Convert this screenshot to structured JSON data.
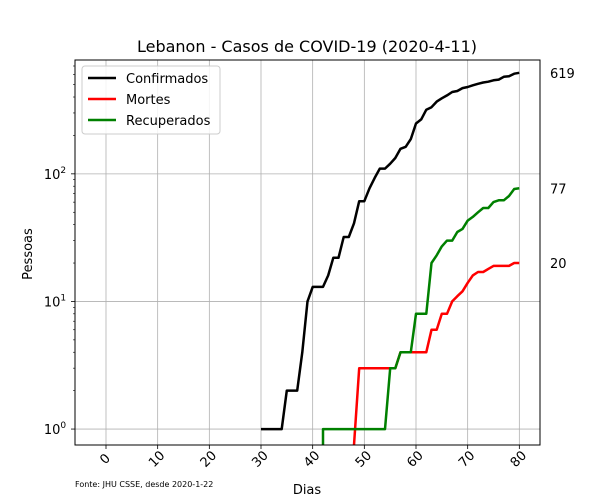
{
  "chart_data": {
    "type": "line",
    "title": "Lebanon - Casos de COVID-19 (2020-4-11)",
    "xlabel": "Dias",
    "ylabel": "Pessoas",
    "source_note": "Fonte: JHU CSSE, desde 2020-1-22",
    "xlim": [
      -6,
      84
    ],
    "ylim": [
      0.75,
      780
    ],
    "yscale": "log",
    "grid": true,
    "legend_position": "top-left",
    "x_ticks": [
      0,
      10,
      20,
      30,
      40,
      50,
      60,
      70,
      80
    ],
    "x_tick_labels": [
      "0",
      "10",
      "20",
      "30",
      "40",
      "50",
      "60",
      "70",
      "80"
    ],
    "y_ticks": [
      1,
      10,
      100
    ],
    "y_tick_labels": [
      {
        "base": "10",
        "exp": "0"
      },
      {
        "base": "10",
        "exp": "1"
      },
      {
        "base": "10",
        "exp": "2"
      }
    ],
    "series": [
      {
        "name": "Confirmados",
        "color": "#000000",
        "end_label": "619",
        "points": [
          [
            30,
            1
          ],
          [
            34,
            1
          ],
          [
            35,
            2
          ],
          [
            37,
            2
          ],
          [
            38,
            4
          ],
          [
            39,
            10
          ],
          [
            40,
            13
          ],
          [
            42,
            13
          ],
          [
            43,
            16
          ],
          [
            44,
            22
          ],
          [
            45,
            22
          ],
          [
            46,
            32
          ],
          [
            47,
            32
          ],
          [
            48,
            41
          ],
          [
            49,
            61
          ],
          [
            50,
            61
          ],
          [
            51,
            77
          ],
          [
            52,
            93
          ],
          [
            53,
            110
          ],
          [
            54,
            110
          ],
          [
            55,
            120
          ],
          [
            56,
            133
          ],
          [
            57,
            157
          ],
          [
            58,
            163
          ],
          [
            59,
            187
          ],
          [
            60,
            248
          ],
          [
            61,
            267
          ],
          [
            62,
            318
          ],
          [
            63,
            333
          ],
          [
            64,
            368
          ],
          [
            65,
            391
          ],
          [
            66,
            412
          ],
          [
            67,
            438
          ],
          [
            68,
            446
          ],
          [
            69,
            470
          ],
          [
            70,
            479
          ],
          [
            71,
            494
          ],
          [
            72,
            508
          ],
          [
            73,
            520
          ],
          [
            74,
            527
          ],
          [
            75,
            541
          ],
          [
            76,
            548
          ],
          [
            77,
            576
          ],
          [
            78,
            582
          ],
          [
            79,
            609
          ],
          [
            80,
            619
          ]
        ]
      },
      {
        "name": "Mortes",
        "color": "#ff0000",
        "end_label": "20",
        "points": [
          [
            48,
            0.75
          ],
          [
            49,
            3
          ],
          [
            55,
            3
          ],
          [
            56,
            3
          ],
          [
            57,
            4
          ],
          [
            62,
            4
          ],
          [
            63,
            6
          ],
          [
            64,
            6
          ],
          [
            65,
            8
          ],
          [
            66,
            8
          ],
          [
            67,
            10
          ],
          [
            68,
            11
          ],
          [
            69,
            12
          ],
          [
            70,
            14
          ],
          [
            71,
            16
          ],
          [
            72,
            17
          ],
          [
            73,
            17
          ],
          [
            74,
            18
          ],
          [
            75,
            19
          ],
          [
            76,
            19
          ],
          [
            77,
            19
          ],
          [
            78,
            19
          ],
          [
            79,
            20
          ],
          [
            80,
            20
          ]
        ]
      },
      {
        "name": "Recuperados",
        "color": "#008000",
        "end_label": "77",
        "points": [
          [
            42,
            0.75
          ],
          [
            42,
            1
          ],
          [
            54,
            1
          ],
          [
            55,
            3
          ],
          [
            56,
            3
          ],
          [
            57,
            4
          ],
          [
            59,
            4
          ],
          [
            60,
            8
          ],
          [
            62,
            8
          ],
          [
            63,
            20
          ],
          [
            64,
            23
          ],
          [
            65,
            27
          ],
          [
            66,
            30
          ],
          [
            67,
            30
          ],
          [
            68,
            35
          ],
          [
            69,
            37
          ],
          [
            70,
            43
          ],
          [
            71,
            46
          ],
          [
            72,
            50
          ],
          [
            73,
            54
          ],
          [
            74,
            54
          ],
          [
            75,
            60
          ],
          [
            76,
            62
          ],
          [
            77,
            62
          ],
          [
            78,
            67
          ],
          [
            79,
            76
          ],
          [
            80,
            77
          ]
        ]
      }
    ]
  }
}
